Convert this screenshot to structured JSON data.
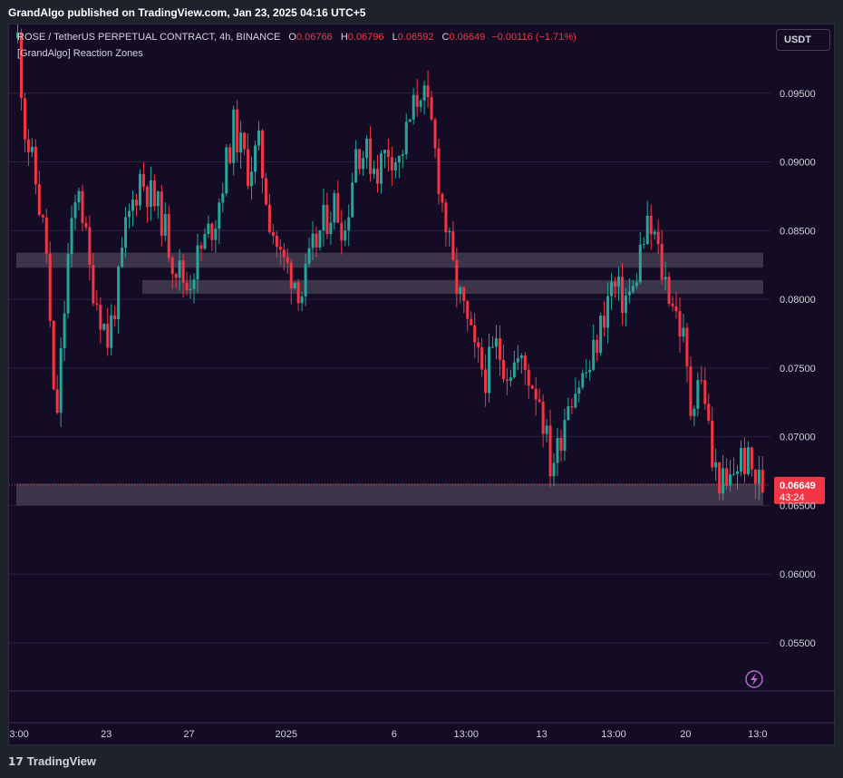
{
  "header": {
    "published": "GrandAlgo published on TradingView.com, Jan 23, 2025 04:16 UTC+5"
  },
  "legend": {
    "symbol": "ROSE / TetherUS PERPETUAL CONTRACT, 4h, BINANCE",
    "o_label": "O",
    "o": "0.06766",
    "h_label": "H",
    "h": "0.06796",
    "l_label": "L",
    "l": "0.06592",
    "c_label": "C",
    "c": "0.06649",
    "change": "−0.00116 (−1.71%)",
    "indicator": "[GrandAlgo] Reaction Zones"
  },
  "currency_button": "USDT",
  "footer": {
    "brand": "TradingView",
    "logo_icon": "tradingview-logo-icon"
  },
  "lightning_icon": "lightning-icon",
  "colors": {
    "background": "#140b24",
    "up": "#26a69a",
    "down": "#f23645",
    "zone": "#4a4455",
    "grid": "#2a2440"
  },
  "chart_data": {
    "type": "candlestick",
    "title": "ROSE / TetherUS PERPETUAL CONTRACT, 4h, BINANCE",
    "y_axis": {
      "ticks": [
        "0.09500",
        "0.09000",
        "0.08500",
        "0.08000",
        "0.07500",
        "0.07000",
        "0.06500",
        "0.06000",
        "0.05500"
      ],
      "tick_values": [
        0.095,
        0.09,
        0.085,
        0.08,
        0.075,
        0.07,
        0.065,
        0.06,
        0.055
      ],
      "range": [
        0.0515,
        0.1
      ]
    },
    "x_axis": {
      "ticks": [
        "13:00",
        "23",
        "27",
        "2025",
        "6",
        "13:00",
        "13",
        "13:00",
        "20",
        "13:0"
      ],
      "tick_index": [
        0,
        25,
        48,
        75,
        105,
        125,
        146,
        166,
        186,
        206
      ]
    },
    "last_price": {
      "value": 0.06649,
      "label": "0.06649",
      "countdown": "43:24"
    },
    "reaction_zones": [
      {
        "from_index": 0,
        "top": 0.0834,
        "bottom": 0.0823
      },
      {
        "from_index": 35,
        "top": 0.0814,
        "bottom": 0.0804
      },
      {
        "from_index": 0,
        "top": 0.0666,
        "bottom": 0.065
      }
    ],
    "close_path": [
      [
        0,
        0.099
      ],
      [
        2,
        0.0925
      ],
      [
        5,
        0.0885
      ],
      [
        8,
        0.0835
      ],
      [
        10,
        0.0725
      ],
      [
        11,
        0.072
      ],
      [
        14,
        0.083
      ],
      [
        17,
        0.0885
      ],
      [
        20,
        0.082
      ],
      [
        25,
        0.077
      ],
      [
        28,
        0.081
      ],
      [
        30,
        0.085
      ],
      [
        34,
        0.089
      ],
      [
        37,
        0.0875
      ],
      [
        40,
        0.086
      ],
      [
        43,
        0.083
      ],
      [
        47,
        0.081
      ],
      [
        50,
        0.083
      ],
      [
        55,
        0.086
      ],
      [
        60,
        0.0925
      ],
      [
        64,
        0.0895
      ],
      [
        67,
        0.091
      ],
      [
        70,
        0.086
      ],
      [
        73,
        0.083
      ],
      [
        76,
        0.082
      ],
      [
        79,
        0.0805
      ],
      [
        82,
        0.0835
      ],
      [
        85,
        0.0855
      ],
      [
        88,
        0.087
      ],
      [
        91,
        0.085
      ],
      [
        94,
        0.091
      ],
      [
        97,
        0.0905
      ],
      [
        100,
        0.0895
      ],
      [
        103,
        0.091
      ],
      [
        106,
        0.09
      ],
      [
        109,
        0.093
      ],
      [
        112,
        0.0955
      ],
      [
        115,
        0.0925
      ],
      [
        118,
        0.087
      ],
      [
        121,
        0.082
      ],
      [
        124,
        0.079
      ],
      [
        127,
        0.076
      ],
      [
        130,
        0.0745
      ],
      [
        133,
        0.0765
      ],
      [
        136,
        0.075
      ],
      [
        139,
        0.0755
      ],
      [
        142,
        0.0745
      ],
      [
        145,
        0.073
      ],
      [
        148,
        0.068
      ],
      [
        150,
        0.069
      ],
      [
        153,
        0.073
      ],
      [
        156,
        0.074
      ],
      [
        159,
        0.075
      ],
      [
        162,
        0.078
      ],
      [
        165,
        0.081
      ],
      [
        168,
        0.08
      ],
      [
        171,
        0.0805
      ],
      [
        173,
        0.0835
      ],
      [
        175,
        0.085
      ],
      [
        177,
        0.0845
      ],
      [
        179,
        0.082
      ],
      [
        182,
        0.08
      ],
      [
        185,
        0.077
      ],
      [
        187,
        0.072
      ],
      [
        189,
        0.0745
      ],
      [
        191,
        0.073
      ],
      [
        193,
        0.068
      ],
      [
        195,
        0.067
      ],
      [
        197,
        0.066
      ],
      [
        199,
        0.0675
      ],
      [
        201,
        0.0685
      ],
      [
        203,
        0.068
      ],
      [
        205,
        0.067
      ],
      [
        207,
        0.06649
      ]
    ]
  }
}
